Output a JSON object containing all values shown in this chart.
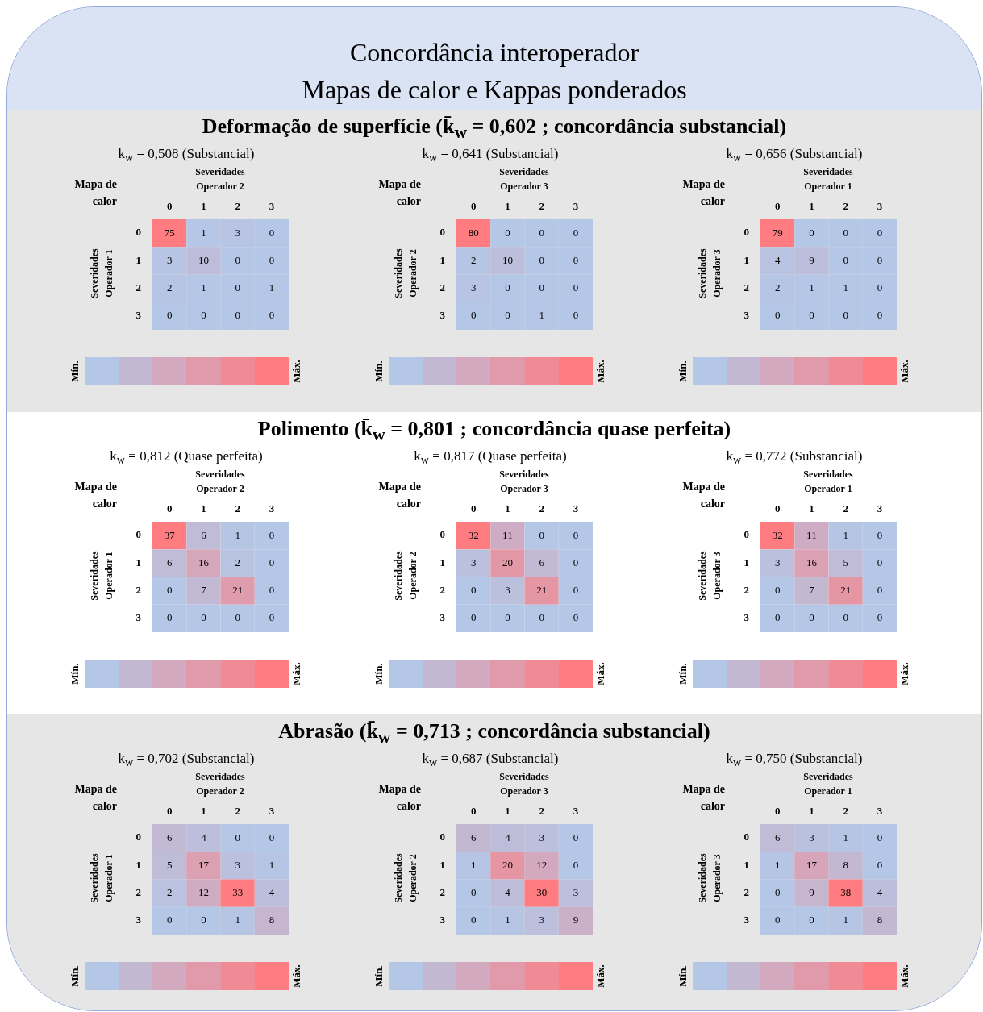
{
  "chart_data": [
    {
      "type": "heatmap",
      "title": "k$_{w}$ = 0,508 (Substancial)",
      "annotations": [
        "Concordância interoperador",
        "Mapas de calor e Kappas ponderados",
        "Mapa de calor",
        "Mín.",
        "Máx."
      ],
      "xlabel": "Severidades Operador 2",
      "ylabel": "Severidades Operador 1",
      "categories": [
        "0",
        "1",
        "2",
        "3"
      ],
      "y_categories": [
        "0",
        "1",
        "2",
        "3"
      ],
      "cells": [
        [
          75,
          1,
          3,
          0
        ],
        [
          3,
          10,
          0,
          0
        ],
        [
          2,
          1,
          0,
          1
        ],
        [
          0,
          0,
          0,
          0
        ]
      ],
      "data_labels": true
    },
    {
      "type": "heatmap",
      "title": "k$_{w}$ = 0,641 (Substancial)",
      "subtitle": "Deformação de superfície (k̄$_{w}$ = 0,602 ; concordância substancial)",
      "annotations": [
        "Mapa de calor",
        "Mín.",
        "Máx."
      ],
      "xlabel": "Severidades Operador 3",
      "ylabel": "Severidades Operador 2",
      "categories": [
        "0",
        "1",
        "2",
        "3"
      ],
      "y_categories": [
        "0",
        "1",
        "2",
        "3"
      ],
      "cells": [
        [
          80,
          0,
          0,
          0
        ],
        [
          2,
          10,
          0,
          0
        ],
        [
          3,
          0,
          0,
          0
        ],
        [
          0,
          0,
          1,
          0
        ]
      ],
      "data_labels": true
    },
    {
      "type": "heatmap",
      "title": "k$_{w}$ = 0,656 (Substancial)",
      "annotations": [
        "Mapa de calor",
        "Mín.",
        "Máx."
      ],
      "xlabel": "Severidades Operador 1",
      "ylabel": "Severidades Operador 3",
      "categories": [
        "0",
        "1",
        "2",
        "3"
      ],
      "y_categories": [
        "0",
        "1",
        "2",
        "3"
      ],
      "cells": [
        [
          79,
          0,
          0,
          0
        ],
        [
          4,
          9,
          0,
          0
        ],
        [
          2,
          1,
          1,
          0
        ],
        [
          0,
          0,
          0,
          0
        ]
      ],
      "data_labels": true
    },
    {
      "type": "heatmap",
      "title": "k$_{w}$ = 0,812 (Quase perfeita)",
      "annotations": [
        "Mapa de calor",
        "Mín.",
        "Máx."
      ],
      "xlabel": "Severidades Operador 2",
      "ylabel": "Severidades Operador 1",
      "categories": [
        "0",
        "1",
        "2",
        "3"
      ],
      "y_categories": [
        "0",
        "1",
        "2",
        "3"
      ],
      "cells": [
        [
          37,
          6,
          1,
          0
        ],
        [
          6,
          16,
          2,
          0
        ],
        [
          0,
          7,
          21,
          0
        ],
        [
          0,
          0,
          0,
          0
        ]
      ],
      "data_labels": true
    },
    {
      "type": "heatmap",
      "title": "k$_{w}$ = 0,817 (Quase perfeita)",
      "subtitle": "Polimento (k̄$_{w}$ = 0,801 ; concordância quase perfeita)",
      "annotations": [
        "Mapa de calor",
        "Mín.",
        "Máx."
      ],
      "xlabel": "Severidades Operador 3",
      "ylabel": "Severidades Operador 2",
      "categories": [
        "0",
        "1",
        "2",
        "3"
      ],
      "y_categories": [
        "0",
        "1",
        "2",
        "3"
      ],
      "cells": [
        [
          32,
          11,
          0,
          0
        ],
        [
          3,
          20,
          6,
          0
        ],
        [
          0,
          3,
          21,
          0
        ],
        [
          0,
          0,
          0,
          0
        ]
      ],
      "data_labels": true
    },
    {
      "type": "heatmap",
      "title": "k$_{w}$ = 0,772 (Substancial)",
      "annotations": [
        "Mapa de calor",
        "Mín.",
        "Máx."
      ],
      "xlabel": "Severidades Operador 1",
      "ylabel": "Severidades Operador 3",
      "categories": [
        "0",
        "1",
        "2",
        "3"
      ],
      "y_categories": [
        "0",
        "1",
        "2",
        "3"
      ],
      "cells": [
        [
          32,
          11,
          1,
          0
        ],
        [
          3,
          16,
          5,
          0
        ],
        [
          0,
          7,
          21,
          0
        ],
        [
          0,
          0,
          0,
          0
        ]
      ],
      "data_labels": true
    },
    {
      "type": "heatmap",
      "title": "k$_{w}$ = 0,702 (Substancial)",
      "annotations": [
        "Mapa de calor",
        "Mín.",
        "Máx."
      ],
      "xlabel": "Severidades Operador 2",
      "ylabel": "Severidades Operador 1",
      "categories": [
        "0",
        "1",
        "2",
        "3"
      ],
      "y_categories": [
        "0",
        "1",
        "2",
        "3"
      ],
      "cells": [
        [
          6,
          4,
          0,
          0
        ],
        [
          5,
          17,
          3,
          1
        ],
        [
          2,
          12,
          33,
          4
        ],
        [
          0,
          0,
          1,
          8
        ]
      ],
      "data_labels": true
    },
    {
      "type": "heatmap",
      "title": "k$_{w}$ = 0,687 (Substancial)",
      "subtitle": "Abrasão (k̄$_{w}$ = 0,713 ; concordância substancial)",
      "annotations": [
        "Mapa de calor",
        "Mín.",
        "Máx."
      ],
      "xlabel": "Severidades Operador 3",
      "ylabel": "Severidades Operador 2",
      "categories": [
        "0",
        "1",
        "2",
        "3"
      ],
      "y_categories": [
        "0",
        "1",
        "2",
        "3"
      ],
      "cells": [
        [
          6,
          4,
          3,
          0
        ],
        [
          1,
          20,
          12,
          0
        ],
        [
          0,
          4,
          30,
          3
        ],
        [
          0,
          1,
          3,
          9
        ]
      ],
      "data_labels": true
    },
    {
      "type": "heatmap",
      "title": "k$_{w}$ = 0,750 (Substancial)",
      "annotations": [
        "Mapa de calor",
        "Mín.",
        "Máx."
      ],
      "xlabel": "Severidades Operador 1",
      "ylabel": "Severidades Operador 3",
      "categories": [
        "0",
        "1",
        "2",
        "3"
      ],
      "y_categories": [
        "0",
        "1",
        "2",
        "3"
      ],
      "cells": [
        [
          6,
          3,
          1,
          0
        ],
        [
          1,
          17,
          8,
          0
        ],
        [
          0,
          9,
          38,
          4
        ],
        [
          0,
          0,
          1,
          8
        ]
      ],
      "data_labels": true
    }
  ]
}
